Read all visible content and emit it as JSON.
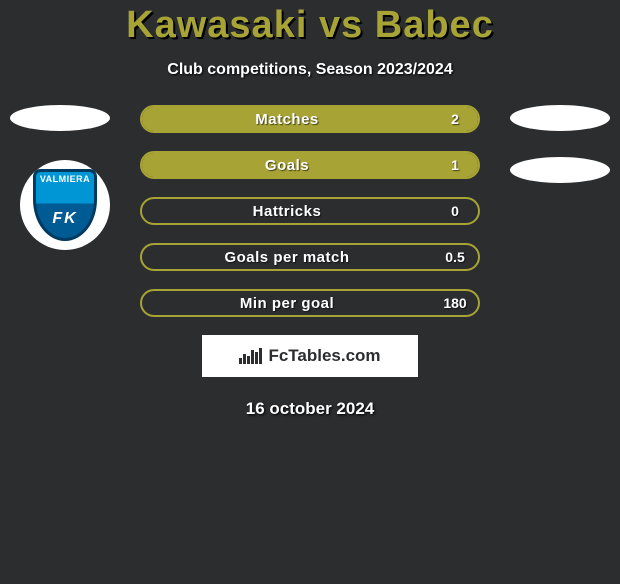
{
  "title": "Kawasaki vs Babec",
  "subtitle": "Club competitions, Season 2023/2024",
  "date": "16 october 2024",
  "club_badge": {
    "text_top": "VALMIERA",
    "text_bottom": "FK",
    "top_color": "#0096d6",
    "bottom_color": "#005a93",
    "border_color": "#003a5f"
  },
  "bars": {
    "border_color": "#a7a335",
    "fill_color": "#a7a335",
    "items": [
      {
        "label": "Matches",
        "value": "2",
        "fill_pct": 100
      },
      {
        "label": "Goals",
        "value": "1",
        "fill_pct": 100
      },
      {
        "label": "Hattricks",
        "value": "0",
        "fill_pct": 0
      },
      {
        "label": "Goals per match",
        "value": "0.5",
        "fill_pct": 0
      },
      {
        "label": "Min per goal",
        "value": "180",
        "fill_pct": 0
      }
    ]
  },
  "brand": {
    "text": "FcTables.com",
    "icon_heights": [
      6,
      10,
      8,
      14,
      12,
      16
    ]
  },
  "colors": {
    "background": "#2b2d2f",
    "accent": "#a7a335",
    "text": "#ffffff"
  }
}
